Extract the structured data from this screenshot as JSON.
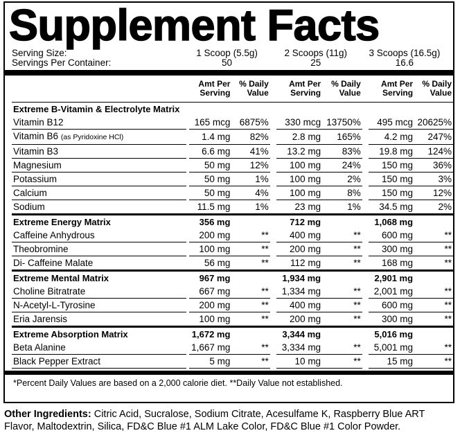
{
  "title": "Supplement Facts",
  "serving": {
    "size_label": "Serving Size:",
    "container_label": "Servings Per Container:",
    "sizes": [
      "1 Scoop (5.5g)",
      "2 Scoops (11g)",
      "3 Scoops (16.5g)"
    ],
    "servings": [
      "50",
      "25",
      "16.6"
    ]
  },
  "column_headers": [
    "Amt Per Serving",
    "% Daily Value",
    "Amt Per Serving",
    "% Daily Value",
    "Amt Per Serving",
    "% Daily Value"
  ],
  "sections": [
    {
      "name": "Extreme B-Vitamin & Electrolyte Matrix",
      "rows": [
        {
          "name": "Vitamin B12",
          "cells": [
            "165 mcg",
            "6875%",
            "330 mcg",
            "13750%",
            "495 mcg",
            "20625%"
          ]
        },
        {
          "name": "Vitamin B6",
          "note": "(as Pyridoxine HCl)",
          "cells": [
            "1.4 mg",
            "82%",
            "2.8 mg",
            "165%",
            "4.2 mg",
            "247%"
          ]
        },
        {
          "name": "Vitamin B3",
          "cells": [
            "6.6 mg",
            "41%",
            "13.2 mg",
            "83%",
            "19.8 mg",
            "124%"
          ]
        },
        {
          "name": "Magnesium",
          "cells": [
            "50 mg",
            "12%",
            "100 mg",
            "24%",
            "150 mg",
            "36%"
          ]
        },
        {
          "name": "Potassium",
          "cells": [
            "50 mg",
            "1%",
            "100 mg",
            "2%",
            "150 mg",
            "3%"
          ]
        },
        {
          "name": "Calcium",
          "cells": [
            "50 mg",
            "4%",
            "100 mg",
            "8%",
            "150 mg",
            "12%"
          ]
        },
        {
          "name": "Sodium",
          "cells": [
            "11.5 mg",
            "1%",
            "23 mg",
            "1%",
            "34.5 mg",
            "2%"
          ]
        }
      ]
    },
    {
      "name": "Extreme Energy Matrix",
      "totals": [
        "356 mg",
        "712 mg",
        "1,068 mg"
      ],
      "rows": [
        {
          "name": "Caffeine Anhydrous",
          "cells": [
            "200 mg",
            "**",
            "400 mg",
            "**",
            "600 mg",
            "**"
          ]
        },
        {
          "name": "Theobromine",
          "cells": [
            "100 mg",
            "**",
            "200 mg",
            "**",
            "300 mg",
            "**"
          ]
        },
        {
          "name": "Di- Caffeine Malate",
          "cells": [
            "56 mg",
            "**",
            "112 mg",
            "**",
            "168 mg",
            "**"
          ]
        }
      ]
    },
    {
      "name": "Extreme Mental Matrix",
      "totals": [
        "967 mg",
        "1,934 mg",
        "2,901 mg"
      ],
      "rows": [
        {
          "name": "Choline Bitratrate",
          "cells": [
            "667 mg",
            "**",
            "1,334 mg",
            "**",
            "2,001 mg",
            "**"
          ]
        },
        {
          "name": "N-Acetyl-L-Tyrosine",
          "cells": [
            "200 mg",
            "**",
            "400 mg",
            "**",
            "600 mg",
            "**"
          ]
        },
        {
          "name": "Eria Jarensis",
          "cells": [
            "100 mg",
            "**",
            "200 mg",
            "**",
            "300 mg",
            "**"
          ]
        }
      ]
    },
    {
      "name": "Extreme Absorption Matrix",
      "totals": [
        "1,672 mg",
        "3,344 mg",
        "5,016 mg"
      ],
      "rows": [
        {
          "name": "Beta Alanine",
          "cells": [
            "1,667 mg",
            "**",
            "3,334 mg",
            "**",
            "5,001 mg",
            "**"
          ]
        },
        {
          "name": "Black Pepper Extract",
          "cells": [
            "5 mg",
            "**",
            "10 mg",
            "**",
            "15 mg",
            "**"
          ]
        }
      ]
    }
  ],
  "footnote": "*Percent Daily Values are based on a 2,000 calorie diet. **Daily Value not established.",
  "other_ingredients": {
    "label": "Other Ingredients:",
    "text": "Citric Acid, Sucralose, Sodium Citrate, Acesulfame K, Raspberry Blue ART Flavor, Maltodextrin, Silica, FD&C Blue #1 ALM Lake Color, FD&C Blue #1 Color Powder."
  }
}
